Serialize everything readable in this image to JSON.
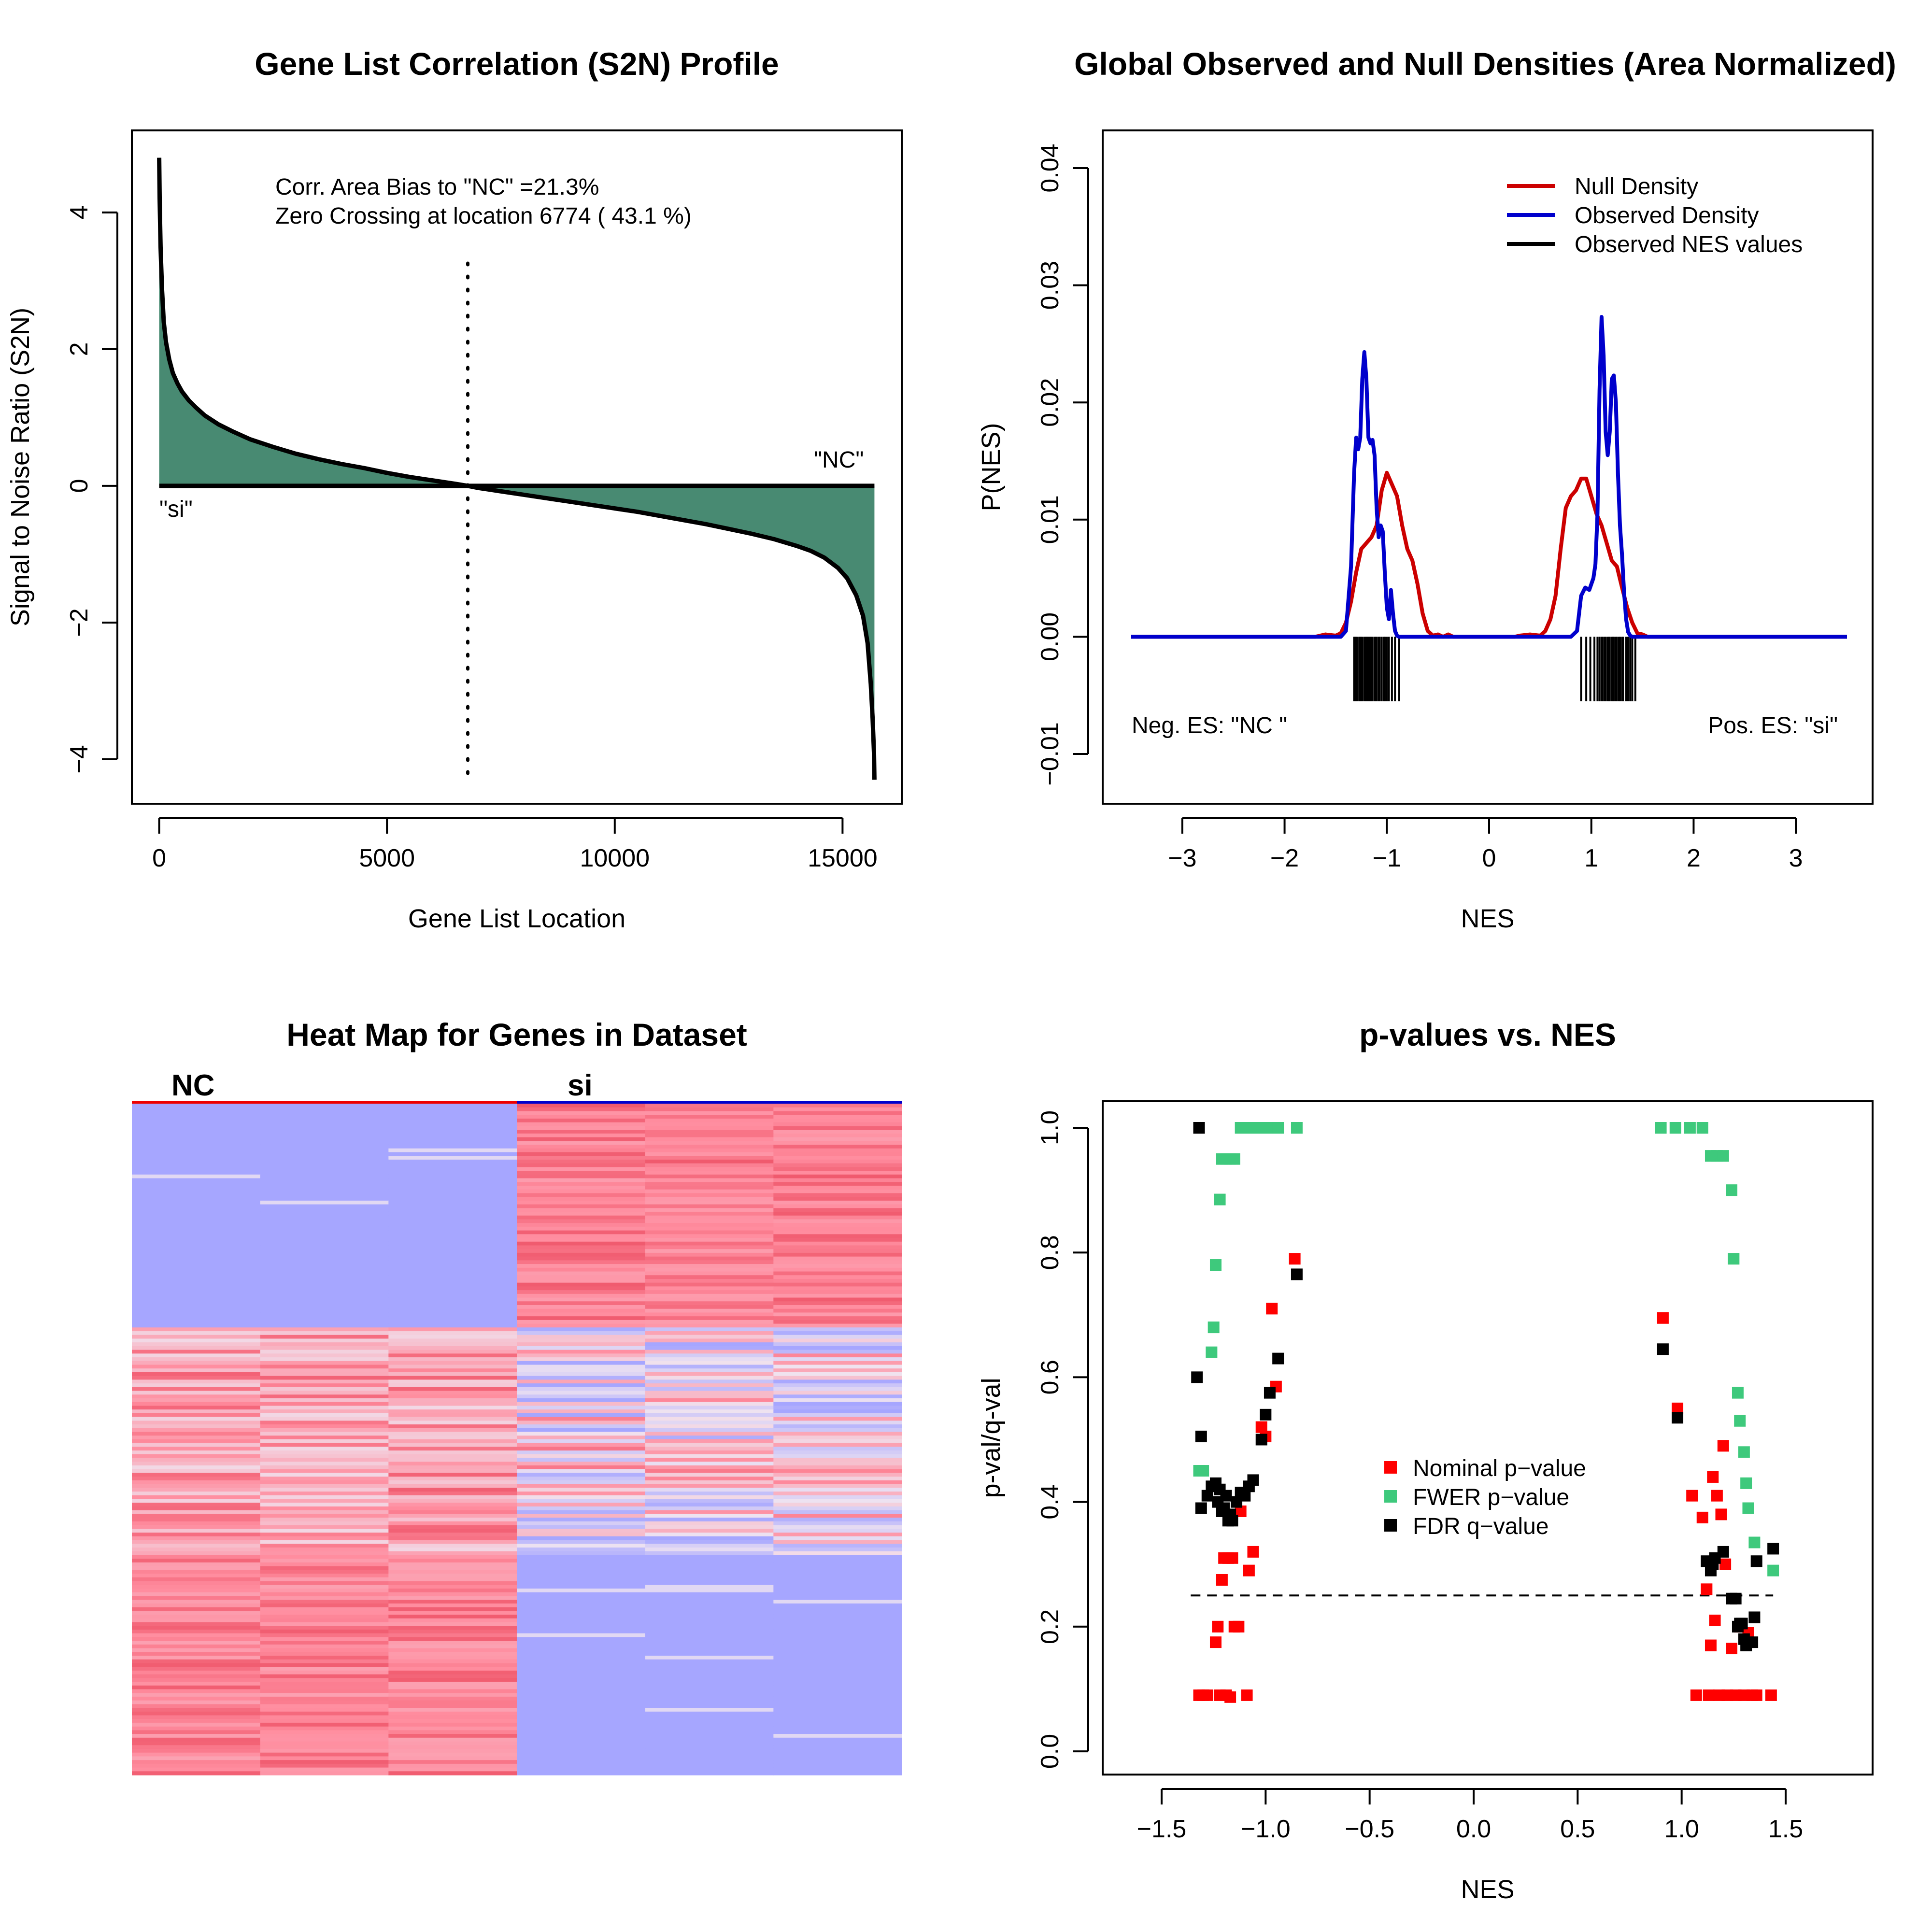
{
  "chart_data": [
    {
      "type": "area",
      "title": "Gene List Correlation (S2N) Profile",
      "xlabel": "Gene List Location",
      "ylabel": "Signal to Noise Ratio (S2N)",
      "xlim": [
        0,
        15700
      ],
      "ylim": [
        -4.3,
        4.8
      ],
      "x_ticks": [
        0,
        5000,
        10000,
        15000
      ],
      "x_tick_labels": [
        "0",
        "5000",
        "10000",
        "15000"
      ],
      "y_ticks": [
        -4,
        -2,
        0,
        2,
        4
      ],
      "y_tick_labels": [
        "−4",
        "−2",
        "0",
        "2",
        "4"
      ],
      "annotations": [
        "Corr. Area Bias to \"NC\" =21.3%",
        "Zero Crossing at location  6774  ( 43.1  %)"
      ],
      "label_left": "\"si\"",
      "label_right": "\"NC\"",
      "zero_crossing": 6774,
      "fill_color": "#488a72",
      "profile": {
        "x": [
          0,
          10,
          30,
          60,
          100,
          150,
          220,
          300,
          400,
          500,
          650,
          800,
          1000,
          1300,
          1600,
          2000,
          2500,
          3000,
          3500,
          4000,
          4500,
          5000,
          5500,
          6000,
          6500,
          6774,
          7000,
          7500,
          8000,
          8500,
          9000,
          9500,
          10000,
          10500,
          11000,
          11500,
          12000,
          12500,
          13000,
          13500,
          14000,
          14300,
          14600,
          14900,
          15100,
          15300,
          15450,
          15550,
          15620,
          15660,
          15690,
          15700
        ],
        "y": [
          4.8,
          4.2,
          3.5,
          2.9,
          2.4,
          2.1,
          1.85,
          1.65,
          1.5,
          1.38,
          1.25,
          1.15,
          1.03,
          0.9,
          0.8,
          0.68,
          0.57,
          0.47,
          0.39,
          0.32,
          0.26,
          0.19,
          0.13,
          0.08,
          0.03,
          0.0,
          -0.03,
          -0.08,
          -0.13,
          -0.18,
          -0.23,
          -0.28,
          -0.33,
          -0.38,
          -0.44,
          -0.5,
          -0.56,
          -0.63,
          -0.7,
          -0.78,
          -0.88,
          -0.95,
          -1.05,
          -1.2,
          -1.35,
          -1.6,
          -1.9,
          -2.3,
          -2.9,
          -3.4,
          -3.9,
          -4.3
        ]
      }
    },
    {
      "type": "line",
      "title": "Global Observed and Null Densities (Area Normalized)",
      "xlabel": "NES",
      "ylabel": "P(NES)",
      "xlim": [
        -3.5,
        3.5
      ],
      "ylim": [
        -0.01,
        0.04
      ],
      "x_ticks": [
        -3,
        -2,
        -1,
        0,
        1,
        2,
        3
      ],
      "x_tick_labels": [
        "−3",
        "−2",
        "−1",
        "0",
        "1",
        "2",
        "3"
      ],
      "y_ticks": [
        -0.01,
        0.0,
        0.01,
        0.02,
        0.03,
        0.04
      ],
      "y_tick_labels": [
        "−0.01",
        "0.00",
        "0.01",
        "0.02",
        "0.03",
        "0.04"
      ],
      "legend_position": "top-right",
      "label_left": "Neg. ES: \"NC \"",
      "label_right": "Pos. ES: \"si\"",
      "series": [
        {
          "name": "Null Density",
          "color": "#cc0000",
          "x": [
            -3.5,
            -2.0,
            -1.7,
            -1.6,
            -1.5,
            -1.45,
            -1.4,
            -1.35,
            -1.3,
            -1.25,
            -1.2,
            -1.15,
            -1.1,
            -1.05,
            -1.0,
            -0.95,
            -0.9,
            -0.85,
            -0.8,
            -0.75,
            -0.7,
            -0.65,
            -0.6,
            -0.55,
            -0.5,
            -0.45,
            -0.4,
            -0.35,
            -0.3,
            0.0,
            0.25,
            0.3,
            0.4,
            0.5,
            0.55,
            0.6,
            0.65,
            0.7,
            0.75,
            0.8,
            0.85,
            0.9,
            0.95,
            1.0,
            1.05,
            1.1,
            1.15,
            1.2,
            1.25,
            1.3,
            1.35,
            1.4,
            1.45,
            1.5,
            1.55,
            1.6,
            1.7,
            3.5
          ],
          "y": [
            0.0,
            0.0,
            0.0,
            0.0002,
            0.0001,
            0.0003,
            0.0012,
            0.003,
            0.0055,
            0.0075,
            0.008,
            0.0085,
            0.0095,
            0.0125,
            0.014,
            0.013,
            0.012,
            0.0095,
            0.0075,
            0.0065,
            0.0045,
            0.002,
            0.0005,
            0.0001,
            0.0002,
            0.0,
            0.0002,
            0.0,
            0.0,
            0.0,
            0.0,
            0.0001,
            0.0002,
            0.0001,
            0.0005,
            0.0015,
            0.0035,
            0.0075,
            0.011,
            0.012,
            0.0125,
            0.0135,
            0.0135,
            0.012,
            0.0105,
            0.0095,
            0.008,
            0.0065,
            0.006,
            0.0042,
            0.0025,
            0.0012,
            0.0003,
            0.0002,
            0.0,
            0.0,
            0.0,
            0.0
          ]
        },
        {
          "name": "Observed Density",
          "color": "#0000cc",
          "x": [
            -3.5,
            -1.45,
            -1.4,
            -1.35,
            -1.32,
            -1.3,
            -1.28,
            -1.26,
            -1.24,
            -1.22,
            -1.2,
            -1.18,
            -1.16,
            -1.14,
            -1.12,
            -1.1,
            -1.08,
            -1.06,
            -1.04,
            -1.02,
            -1.0,
            -0.98,
            -0.96,
            -0.94,
            -0.92,
            -0.9,
            -0.88,
            -0.86,
            -0.84,
            -0.82,
            -0.8,
            0.8,
            0.86,
            0.9,
            0.94,
            0.98,
            1.0,
            1.02,
            1.04,
            1.06,
            1.08,
            1.1,
            1.12,
            1.14,
            1.16,
            1.18,
            1.2,
            1.22,
            1.24,
            1.26,
            1.28,
            1.3,
            1.32,
            1.34,
            1.36,
            1.38,
            1.4,
            1.42,
            1.44,
            1.46,
            1.48,
            1.52,
            1.56,
            3.5
          ],
          "y": [
            0.0,
            0.0,
            0.0005,
            0.006,
            0.014,
            0.017,
            0.016,
            0.017,
            0.022,
            0.0243,
            0.022,
            0.017,
            0.0165,
            0.0168,
            0.0155,
            0.011,
            0.0085,
            0.0095,
            0.009,
            0.0055,
            0.0025,
            0.0015,
            0.004,
            0.002,
            0.0005,
            0.0001,
            0.0,
            0.0,
            0.0,
            0.0,
            0.0,
            0.0,
            0.0005,
            0.0035,
            0.0042,
            0.004,
            0.0045,
            0.005,
            0.0062,
            0.0105,
            0.021,
            0.0273,
            0.024,
            0.0175,
            0.0155,
            0.0175,
            0.022,
            0.0223,
            0.02,
            0.014,
            0.0095,
            0.007,
            0.0038,
            0.0015,
            0.0004,
            0.0001,
            0.0,
            0.0,
            0.0,
            0.0,
            0.0,
            0.0,
            0.0,
            0.0
          ]
        },
        {
          "name": "Observed NES values",
          "color": "#000000",
          "neg_values": [
            -1.32,
            -1.31,
            -1.3,
            -1.29,
            -1.27,
            -1.26,
            -1.25,
            -1.24,
            -1.22,
            -1.21,
            -1.2,
            -1.19,
            -1.18,
            -1.17,
            -1.16,
            -1.15,
            -1.14,
            -1.12,
            -1.11,
            -1.1,
            -1.08,
            -1.07,
            -1.05,
            -1.03,
            -1.02,
            -1.0,
            -0.98,
            -0.95,
            -0.92,
            -0.88
          ],
          "pos_values": [
            0.9,
            0.95,
            0.99,
            1.03,
            1.06,
            1.08,
            1.1,
            1.11,
            1.13,
            1.14,
            1.16,
            1.17,
            1.18,
            1.2,
            1.21,
            1.22,
            1.24,
            1.25,
            1.27,
            1.28,
            1.3,
            1.31,
            1.34,
            1.36,
            1.38,
            1.4,
            1.43
          ]
        }
      ]
    },
    {
      "type": "heatmap",
      "title": "Heat Map for Genes in Dataset",
      "column_groups": [
        {
          "label": "NC",
          "color": "#ee0000",
          "columns": 3
        },
        {
          "label": "si",
          "color": "#0000cc",
          "columns": 3
        }
      ],
      "rows": 180,
      "low_color": "#a6a6ff",
      "high_color": "#ff8c9e"
    },
    {
      "type": "scatter",
      "title": "p-values vs. NES",
      "xlabel": "NES",
      "ylabel": "p-val/q-val",
      "xlim": [
        -1.8,
        1.9
      ],
      "ylim": [
        -0.03,
        1.04
      ],
      "x_ticks": [
        -1.5,
        -1.0,
        -0.5,
        0.0,
        0.5,
        1.0,
        1.5
      ],
      "x_tick_labels": [
        "−1.5",
        "−1.0",
        "−0.5",
        "0.0",
        "0.5",
        "1.0",
        "1.5"
      ],
      "y_ticks": [
        0.0,
        0.2,
        0.4,
        0.6,
        0.8,
        1.0
      ],
      "y_tick_labels": [
        "0.0",
        "0.2",
        "0.4",
        "0.6",
        "0.8",
        "1.0"
      ],
      "threshold_line": 0.25,
      "legend_position": "center",
      "series": [
        {
          "name": "Nominal p−value",
          "color": "#ff0000",
          "points": [
            [
              -1.32,
              0.09
            ],
            [
              -1.3,
              0.09
            ],
            [
              -1.28,
              0.09
            ],
            [
              -1.24,
              0.175
            ],
            [
              -1.23,
              0.2
            ],
            [
              -1.22,
              0.09
            ],
            [
              -1.21,
              0.275
            ],
            [
              -1.2,
              0.31
            ],
            [
              -1.19,
              0.09
            ],
            [
              -1.18,
              0.31
            ],
            [
              -1.17,
              0.087
            ],
            [
              -1.16,
              0.31
            ],
            [
              -1.15,
              0.2
            ],
            [
              -1.13,
              0.2
            ],
            [
              -1.12,
              0.385
            ],
            [
              -1.09,
              0.09
            ],
            [
              -1.08,
              0.29
            ],
            [
              -1.06,
              0.32
            ],
            [
              -1.02,
              0.52
            ],
            [
              -1.0,
              0.505
            ],
            [
              -0.97,
              0.71
            ],
            [
              -0.95,
              0.585
            ],
            [
              -0.86,
              0.79
            ],
            [
              0.91,
              0.695
            ],
            [
              0.98,
              0.55
            ],
            [
              1.05,
              0.41
            ],
            [
              1.07,
              0.09
            ],
            [
              1.1,
              0.375
            ],
            [
              1.12,
              0.26
            ],
            [
              1.13,
              0.09
            ],
            [
              1.14,
              0.17
            ],
            [
              1.15,
              0.44
            ],
            [
              1.16,
              0.21
            ],
            [
              1.17,
              0.41
            ],
            [
              1.18,
              0.09
            ],
            [
              1.19,
              0.38
            ],
            [
              1.2,
              0.49
            ],
            [
              1.21,
              0.3
            ],
            [
              1.22,
              0.09
            ],
            [
              1.24,
              0.165
            ],
            [
              1.26,
              0.09
            ],
            [
              1.28,
              0.2
            ],
            [
              1.3,
              0.09
            ],
            [
              1.32,
              0.19
            ],
            [
              1.34,
              0.09
            ],
            [
              1.36,
              0.09
            ],
            [
              1.43,
              0.09
            ]
          ]
        },
        {
          "name": "FWER p−value",
          "color": "#3ec97c",
          "points": [
            [
              -1.32,
              0.45
            ],
            [
              -1.3,
              0.45
            ],
            [
              -1.26,
              0.64
            ],
            [
              -1.25,
              0.68
            ],
            [
              -1.24,
              0.78
            ],
            [
              -1.22,
              0.885
            ],
            [
              -1.21,
              0.95
            ],
            [
              -1.19,
              0.95
            ],
            [
              -1.17,
              0.95
            ],
            [
              -1.15,
              0.95
            ],
            [
              -1.12,
              1.0
            ],
            [
              -1.1,
              1.0
            ],
            [
              -1.08,
              1.0
            ],
            [
              -1.06,
              1.0
            ],
            [
              -1.04,
              1.0
            ],
            [
              -1.02,
              1.0
            ],
            [
              -1.0,
              1.0
            ],
            [
              -0.98,
              1.0
            ],
            [
              -0.96,
              1.0
            ],
            [
              -0.94,
              1.0
            ],
            [
              -0.85,
              1.0
            ],
            [
              0.9,
              1.0
            ],
            [
              0.97,
              1.0
            ],
            [
              1.04,
              1.0
            ],
            [
              1.1,
              1.0
            ],
            [
              1.14,
              0.955
            ],
            [
              1.17,
              0.955
            ],
            [
              1.2,
              0.955
            ],
            [
              1.24,
              0.9
            ],
            [
              1.25,
              0.79
            ],
            [
              1.27,
              0.575
            ],
            [
              1.28,
              0.53
            ],
            [
              1.3,
              0.48
            ],
            [
              1.31,
              0.43
            ],
            [
              1.32,
              0.39
            ],
            [
              1.35,
              0.335
            ],
            [
              1.44,
              0.29
            ]
          ]
        },
        {
          "name": "FDR q−value",
          "color": "#000000",
          "points": [
            [
              -1.32,
              1.0
            ],
            [
              -1.33,
              0.6
            ],
            [
              -1.31,
              0.505
            ],
            [
              -1.31,
              0.39
            ],
            [
              -1.28,
              0.41
            ],
            [
              -1.26,
              0.425
            ],
            [
              -1.24,
              0.43
            ],
            [
              -1.23,
              0.4
            ],
            [
              -1.22,
              0.42
            ],
            [
              -1.21,
              0.385
            ],
            [
              -1.2,
              0.39
            ],
            [
              -1.19,
              0.41
            ],
            [
              -1.18,
              0.37
            ],
            [
              -1.17,
              0.38
            ],
            [
              -1.16,
              0.37
            ],
            [
              -1.14,
              0.4
            ],
            [
              -1.12,
              0.415
            ],
            [
              -1.1,
              0.41
            ],
            [
              -1.08,
              0.425
            ],
            [
              -1.06,
              0.435
            ],
            [
              -1.02,
              0.5
            ],
            [
              -1.0,
              0.54
            ],
            [
              -0.98,
              0.575
            ],
            [
              -0.94,
              0.63
            ],
            [
              -0.85,
              0.765
            ],
            [
              0.91,
              0.645
            ],
            [
              0.98,
              0.535
            ],
            [
              1.12,
              0.305
            ],
            [
              1.14,
              0.29
            ],
            [
              1.15,
              0.3
            ],
            [
              1.16,
              0.31
            ],
            [
              1.2,
              0.32
            ],
            [
              1.24,
              0.245
            ],
            [
              1.26,
              0.245
            ],
            [
              1.27,
              0.2
            ],
            [
              1.28,
              0.205
            ],
            [
              1.29,
              0.205
            ],
            [
              1.3,
              0.18
            ],
            [
              1.31,
              0.17
            ],
            [
              1.32,
              0.175
            ],
            [
              1.34,
              0.175
            ],
            [
              1.35,
              0.215
            ],
            [
              1.36,
              0.305
            ],
            [
              1.44,
              0.325
            ]
          ]
        }
      ]
    }
  ]
}
